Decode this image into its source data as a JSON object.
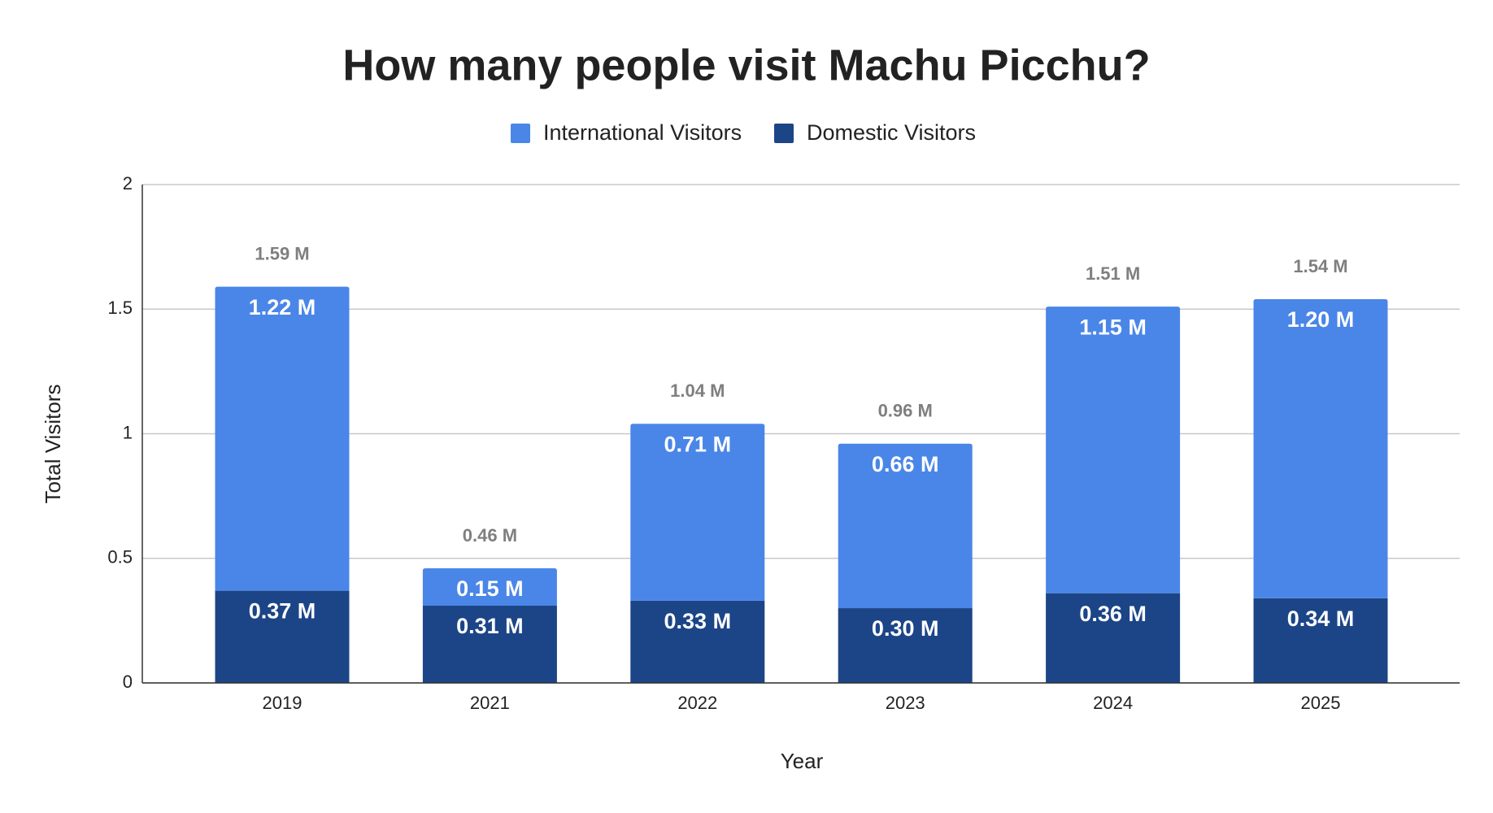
{
  "chart_data": {
    "type": "stacked_bar",
    "title": "How many people visit Machu Picchu?",
    "x_label": "Year",
    "y_label": "Total Visitors",
    "categories": [
      "2019",
      "2021",
      "2022",
      "2023",
      "2024",
      "2025"
    ],
    "series": [
      {
        "name": "International Visitors",
        "color": "#4a86e8",
        "values": [
          1.22,
          0.15,
          0.71,
          0.66,
          1.15,
          1.2
        ],
        "value_labels": [
          "1.22 M",
          "0.15 M",
          "0.71 M",
          "0.66 M",
          "1.15 M",
          "1.20 M"
        ]
      },
      {
        "name": "Domestic Visitors",
        "color": "#1c4587",
        "values": [
          0.37,
          0.31,
          0.33,
          0.3,
          0.36,
          0.34
        ],
        "value_labels": [
          "0.37 M",
          "0.31 M",
          "0.33 M",
          "0.30 M",
          "0.36 M",
          "0.34 M"
        ]
      }
    ],
    "totals": {
      "values": [
        1.59,
        0.46,
        1.04,
        0.96,
        1.51,
        1.54
      ],
      "value_labels": [
        "1.59 M",
        "0.46 M",
        "1.04 M",
        "0.96 M",
        "1.51 M",
        "1.54 M"
      ]
    },
    "ylim": [
      0,
      2
    ],
    "yticks": [
      0,
      0.5,
      1,
      1.5,
      2
    ],
    "grid": true
  }
}
